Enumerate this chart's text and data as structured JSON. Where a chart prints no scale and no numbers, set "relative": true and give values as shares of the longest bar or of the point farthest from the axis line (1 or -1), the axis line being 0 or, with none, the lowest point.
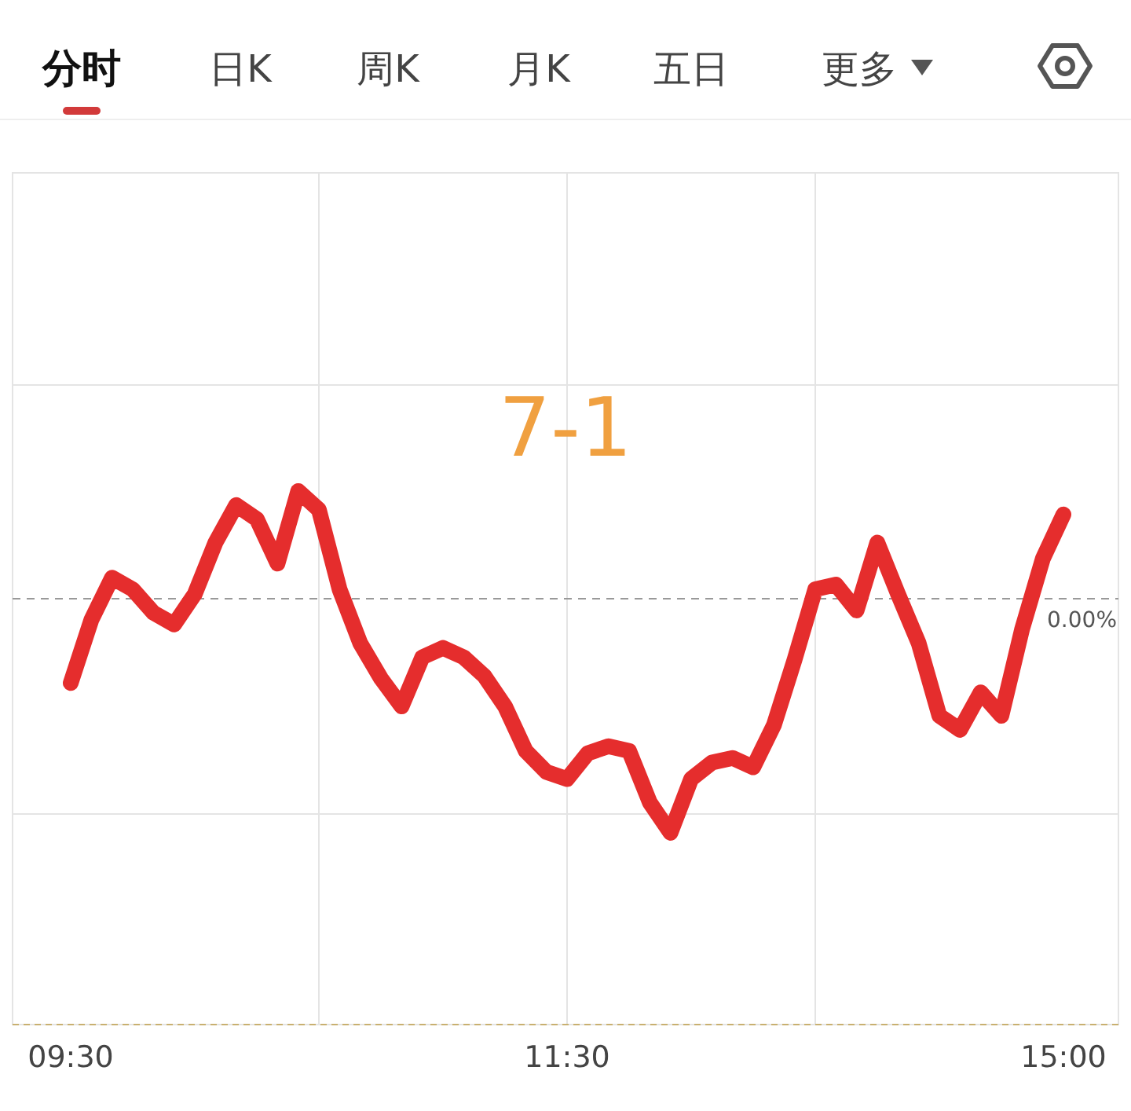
{
  "chart_data": {
    "type": "line",
    "relative": true,
    "grid": true,
    "marker": "none",
    "line_style": "solid",
    "annotations": [
      "7-1",
      "分时",
      "日K",
      "周K",
      "月K",
      "五日",
      "更多"
    ],
    "categories": [
      "09:30",
      null,
      null,
      null,
      null,
      null,
      null,
      null,
      null,
      null,
      null,
      null,
      null,
      null,
      null,
      null,
      null,
      null,
      null,
      null,
      null,
      null,
      null,
      null,
      "11:30",
      null,
      null,
      null,
      null,
      null,
      null,
      null,
      null,
      null,
      null,
      null,
      null,
      null,
      null,
      null,
      null,
      null,
      null,
      null,
      null,
      null,
      null,
      null,
      "15:00"
    ],
    "series": [
      {
        "color": "#e52d2d",
        "values": [
          -0.36,
          -0.09,
          0.09,
          0.04,
          -0.06,
          -0.11,
          0.02,
          0.24,
          0.4,
          0.34,
          0.15,
          0.46,
          0.38,
          0.04,
          -0.19,
          -0.34,
          -0.46,
          -0.25,
          -0.21,
          -0.25,
          -0.33,
          -0.46,
          -0.65,
          -0.74,
          -0.77,
          -0.66,
          -0.63,
          -0.65,
          -0.87,
          -1,
          -0.77,
          -0.7,
          -0.68,
          -0.72,
          -0.54,
          -0.26,
          0.04,
          0.06,
          -0.05,
          0.24,
          0.02,
          -0.19,
          -0.5,
          -0.56,
          -0.4,
          -0.5,
          -0.13,
          0.17,
          0.36
        ]
      }
    ],
    "ref_lines": [
      {
        "axis": "y",
        "value": 0,
        "label": "0.00%",
        "color": "#999999",
        "line_style": "dashed"
      }
    ]
  }
}
